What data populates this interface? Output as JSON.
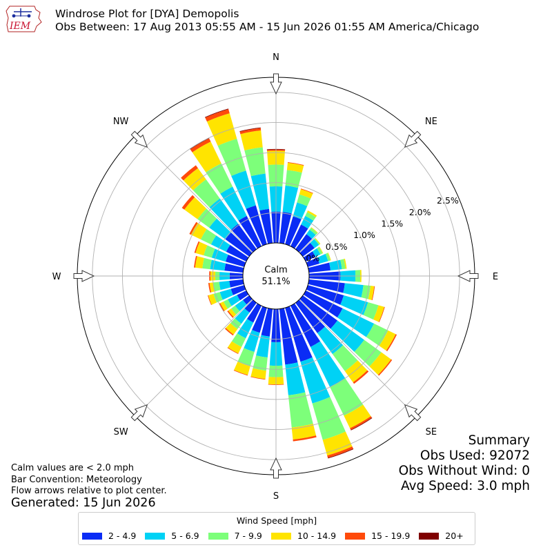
{
  "header": {
    "logo_text": "IEM",
    "title_line1": "Windrose Plot for [DYA] Demopolis",
    "title_line2": "Obs Between: 17 Aug 2013 05:55 AM - 15 Jun 2026 01:55 AM America/Chicago"
  },
  "calm": {
    "label": "Calm",
    "value": "51.1%"
  },
  "summary": {
    "title": "Summary",
    "obs_used": "Obs Used: 92072",
    "obs_without_wind": "Obs Without Wind: 0",
    "avg_speed": "Avg Speed: 3.0 mph"
  },
  "notes": {
    "line1": "Calm values are < 2.0 mph",
    "line2": "Bar Convention: Meteorology",
    "line3": "Flow arrows relative to plot center."
  },
  "generated": "Generated: 15 Jun 2026",
  "legend": {
    "title": "Wind Speed [mph]",
    "items": [
      {
        "label": "2 - 4.9",
        "color": "#0a2cf5"
      },
      {
        "label": "5 - 6.9",
        "color": "#00d2f5"
      },
      {
        "label": "7 - 9.9",
        "color": "#7dff7a"
      },
      {
        "label": "10 - 14.9",
        "color": "#ffe400"
      },
      {
        "label": "15 - 19.9",
        "color": "#ff4a0a"
      },
      {
        "label": "20+",
        "color": "#7f0000"
      }
    ]
  },
  "chart_data": {
    "type": "windrose",
    "radial_ticks": [
      "0.0%",
      "0.5%",
      "1.0%",
      "1.5%",
      "2.0%",
      "2.5%"
    ],
    "radial_tick_values": [
      0.0,
      0.5,
      1.0,
      1.5,
      2.0,
      2.5
    ],
    "r_max": 2.75,
    "compass_labels": [
      "N",
      "NE",
      "E",
      "SE",
      "S",
      "SW",
      "W",
      "NW"
    ],
    "bin_labels": [
      "2 - 4.9",
      "5 - 6.9",
      "7 - 9.9",
      "10 - 14.9",
      "15 - 19.9",
      "20+"
    ],
    "directions_deg": [
      0,
      10,
      20,
      30,
      40,
      50,
      60,
      70,
      80,
      90,
      100,
      110,
      120,
      130,
      140,
      150,
      160,
      170,
      180,
      190,
      200,
      210,
      220,
      230,
      240,
      250,
      260,
      270,
      280,
      290,
      300,
      310,
      320,
      330,
      340,
      350
    ],
    "cumulative": [
      [
        0.52,
        0.94,
        1.3,
        1.53,
        1.55,
        1.56
      ],
      [
        0.52,
        0.96,
        1.22,
        1.34,
        1.35,
        1.35
      ],
      [
        0.48,
        0.72,
        0.86,
        0.95,
        0.96,
        0.96
      ],
      [
        0.4,
        0.56,
        0.63,
        0.66,
        0.66,
        0.66
      ],
      [
        0.31,
        0.4,
        0.44,
        0.45,
        0.45,
        0.45
      ],
      [
        0.24,
        0.33,
        0.35,
        0.36,
        0.36,
        0.36
      ],
      [
        0.18,
        0.27,
        0.31,
        0.32,
        0.32,
        0.32
      ],
      [
        0.2,
        0.35,
        0.39,
        0.4,
        0.4,
        0.4
      ],
      [
        0.36,
        0.55,
        0.61,
        0.63,
        0.63,
        0.63
      ],
      [
        0.52,
        0.77,
        0.85,
        0.87,
        0.87,
        0.87
      ],
      [
        0.6,
        0.91,
        1.03,
        1.09,
        1.1,
        1.1
      ],
      [
        0.62,
        1.04,
        1.22,
        1.32,
        1.33,
        1.33
      ],
      [
        0.68,
        1.26,
        1.52,
        1.66,
        1.68,
        1.68
      ],
      [
        0.71,
        1.26,
        1.61,
        1.81,
        1.83,
        1.83
      ],
      [
        0.62,
        1.05,
        1.4,
        1.63,
        1.66,
        1.66
      ],
      [
        0.76,
        1.5,
        2.03,
        2.26,
        2.29,
        2.3
      ],
      [
        0.93,
        1.65,
        2.28,
        2.55,
        2.59,
        2.6
      ],
      [
        0.93,
        1.44,
        1.98,
        2.18,
        2.21,
        2.21
      ],
      [
        0.55,
        0.94,
        1.13,
        1.25,
        1.26,
        1.26
      ],
      [
        0.46,
        0.81,
        1.03,
        1.17,
        1.18,
        1.18
      ],
      [
        0.43,
        0.76,
        1.01,
        1.16,
        1.17,
        1.17
      ],
      [
        0.31,
        0.6,
        0.76,
        0.88,
        0.89,
        0.89
      ],
      [
        0.2,
        0.43,
        0.54,
        0.65,
        0.67,
        0.67
      ],
      [
        0.13,
        0.29,
        0.37,
        0.43,
        0.45,
        0.45
      ],
      [
        0.17,
        0.34,
        0.42,
        0.48,
        0.5,
        0.5
      ],
      [
        0.23,
        0.42,
        0.53,
        0.62,
        0.63,
        0.63
      ],
      [
        0.23,
        0.4,
        0.5,
        0.56,
        0.58,
        0.58
      ],
      [
        0.22,
        0.39,
        0.46,
        0.54,
        0.56,
        0.56
      ],
      [
        0.31,
        0.55,
        0.68,
        0.8,
        0.82,
        0.82
      ],
      [
        0.32,
        0.56,
        0.7,
        0.84,
        0.86,
        0.86
      ],
      [
        0.37,
        0.65,
        0.84,
        1.02,
        1.05,
        1.05
      ],
      [
        0.49,
        0.82,
        1.06,
        1.33,
        1.38,
        1.38
      ],
      [
        0.52,
        1.04,
        1.43,
        1.66,
        1.72,
        1.72
      ],
      [
        0.56,
        1.1,
        1.53,
        1.93,
        1.99,
        2.0
      ],
      [
        0.67,
        1.27,
        1.82,
        2.26,
        2.33,
        2.34
      ],
      [
        0.57,
        1.16,
        1.6,
        1.88,
        1.92,
        1.93
      ]
    ]
  }
}
